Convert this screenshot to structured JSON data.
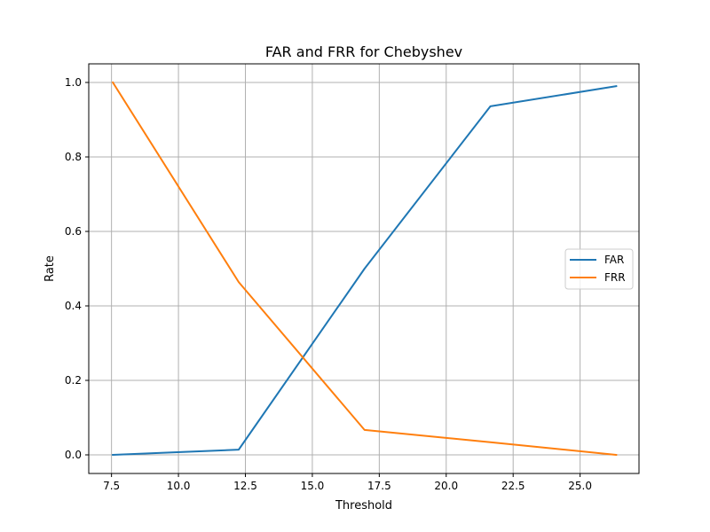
{
  "chart_data": {
    "type": "line",
    "title": "FAR and FRR for Chebyshev",
    "xlabel": "Threshold",
    "ylabel": "Rate",
    "xlim": [
      6.65,
      27.2
    ],
    "ylim": [
      -0.05,
      1.05
    ],
    "xticks": [
      7.5,
      10.0,
      12.5,
      15.0,
      17.5,
      20.0,
      22.5,
      25.0
    ],
    "xtick_labels": [
      "7.5",
      "10.0",
      "12.5",
      "15.0",
      "17.5",
      "20.0",
      "22.5",
      "25.0"
    ],
    "yticks": [
      0.0,
      0.2,
      0.4,
      0.6,
      0.8,
      1.0
    ],
    "ytick_labels": [
      "0.0",
      "0.2",
      "0.4",
      "0.6",
      "0.8",
      "1.0"
    ],
    "grid": true,
    "legend_position": "center-right",
    "series": [
      {
        "name": "FAR",
        "color": "#1f77b4",
        "x": [
          7.55,
          12.25,
          16.95,
          21.65,
          26.35
        ],
        "y": [
          0.0,
          0.014,
          0.5,
          0.936,
          0.99
        ]
      },
      {
        "name": "FRR",
        "color": "#ff7f0e",
        "x": [
          7.55,
          12.25,
          16.95,
          21.65,
          26.35
        ],
        "y": [
          1.0,
          0.464,
          0.067,
          0.034,
          0.0
        ]
      }
    ]
  }
}
